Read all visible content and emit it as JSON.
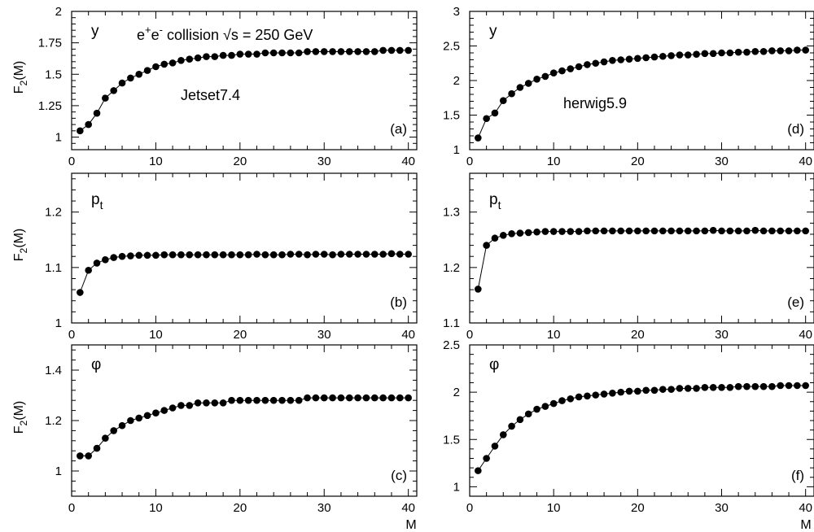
{
  "figure": {
    "annotation": "e⁺e⁻ collision  √s = 250 GeV",
    "generators": [
      "Jetset7.4",
      "herwig5.9"
    ]
  },
  "chart_data": [
    {
      "id": "a",
      "type": "scatter",
      "panel_label": "(a)",
      "variable": "y",
      "generator_label": "Jetset7.4",
      "ylabel": "F₂(M)",
      "xlabel": "",
      "xlim": [
        0,
        41
      ],
      "ylim": [
        0.9,
        2.0
      ],
      "xticks": [
        0,
        10,
        20,
        30,
        40
      ],
      "yticks": [
        "1",
        "1.25",
        "1.5",
        "1.75",
        "2"
      ],
      "x": [
        1,
        2,
        3,
        4,
        5,
        6,
        7,
        8,
        9,
        10,
        11,
        12,
        13,
        14,
        15,
        16,
        17,
        18,
        19,
        20,
        21,
        22,
        23,
        24,
        25,
        26,
        27,
        28,
        29,
        30,
        31,
        32,
        33,
        34,
        35,
        36,
        37,
        38,
        39,
        40
      ],
      "y": [
        1.05,
        1.1,
        1.19,
        1.31,
        1.37,
        1.43,
        1.47,
        1.5,
        1.53,
        1.56,
        1.58,
        1.59,
        1.61,
        1.62,
        1.63,
        1.64,
        1.64,
        1.65,
        1.65,
        1.66,
        1.66,
        1.66,
        1.67,
        1.67,
        1.67,
        1.67,
        1.67,
        1.68,
        1.68,
        1.68,
        1.68,
        1.68,
        1.68,
        1.68,
        1.68,
        1.68,
        1.69,
        1.69,
        1.69,
        1.69
      ],
      "fit_line": true
    },
    {
      "id": "b",
      "type": "scatter",
      "panel_label": "(b)",
      "variable": "pₜ",
      "ylabel": "F₂(M)",
      "xlabel": "",
      "xlim": [
        0,
        41
      ],
      "ylim": [
        1.0,
        1.27
      ],
      "xticks": [
        0,
        10,
        20,
        30,
        40
      ],
      "yticks": [
        "1",
        "1.1",
        "1.2"
      ],
      "x": [
        1,
        2,
        3,
        4,
        5,
        6,
        7,
        8,
        9,
        10,
        11,
        12,
        13,
        14,
        15,
        16,
        17,
        18,
        19,
        20,
        21,
        22,
        23,
        24,
        25,
        26,
        27,
        28,
        29,
        30,
        31,
        32,
        33,
        34,
        35,
        36,
        37,
        38,
        39,
        40
      ],
      "y": [
        1.055,
        1.095,
        1.108,
        1.114,
        1.118,
        1.12,
        1.121,
        1.122,
        1.122,
        1.122,
        1.123,
        1.123,
        1.123,
        1.123,
        1.123,
        1.123,
        1.123,
        1.123,
        1.123,
        1.123,
        1.123,
        1.124,
        1.123,
        1.123,
        1.123,
        1.124,
        1.124,
        1.123,
        1.124,
        1.124,
        1.123,
        1.124,
        1.124,
        1.124,
        1.124,
        1.124,
        1.124,
        1.125,
        1.124,
        1.124
      ],
      "fit_line": true
    },
    {
      "id": "c",
      "type": "scatter",
      "panel_label": "(c)",
      "variable": "φ",
      "ylabel": "F₂(M)",
      "xlabel": "",
      "xlim": [
        0,
        41
      ],
      "ylim": [
        0.9,
        1.5
      ],
      "xticks": [
        0,
        10,
        20,
        30,
        40
      ],
      "yticks": [
        "1",
        "1.2",
        "1.4"
      ],
      "x": [
        1,
        2,
        3,
        4,
        5,
        6,
        7,
        8,
        9,
        10,
        11,
        12,
        13,
        14,
        15,
        16,
        17,
        18,
        19,
        20,
        21,
        22,
        23,
        24,
        25,
        26,
        27,
        28,
        29,
        30,
        31,
        32,
        33,
        34,
        35,
        36,
        37,
        38,
        39,
        40
      ],
      "y": [
        1.06,
        1.06,
        1.09,
        1.13,
        1.16,
        1.18,
        1.2,
        1.21,
        1.22,
        1.23,
        1.24,
        1.25,
        1.26,
        1.26,
        1.27,
        1.27,
        1.27,
        1.27,
        1.28,
        1.28,
        1.28,
        1.28,
        1.28,
        1.28,
        1.28,
        1.28,
        1.28,
        1.29,
        1.29,
        1.29,
        1.29,
        1.29,
        1.29,
        1.29,
        1.29,
        1.29,
        1.29,
        1.29,
        1.29,
        1.29
      ],
      "fit_line": true
    },
    {
      "id": "d",
      "type": "scatter",
      "panel_label": "(d)",
      "variable": "y",
      "generator_label": "herwig5.9",
      "ylabel": "",
      "xlabel": "",
      "xlim": [
        0,
        41
      ],
      "ylim": [
        1.0,
        3.0
      ],
      "xticks": [
        0,
        10,
        20,
        30,
        40
      ],
      "yticks": [
        "1",
        "1.5",
        "2",
        "2.5",
        "3"
      ],
      "x": [
        1,
        2,
        3,
        4,
        5,
        6,
        7,
        8,
        9,
        10,
        11,
        12,
        13,
        14,
        15,
        16,
        17,
        18,
        19,
        20,
        21,
        22,
        23,
        24,
        25,
        26,
        27,
        28,
        29,
        30,
        31,
        32,
        33,
        34,
        35,
        36,
        37,
        38,
        39,
        40
      ],
      "y": [
        1.17,
        1.45,
        1.53,
        1.71,
        1.81,
        1.9,
        1.96,
        2.02,
        2.06,
        2.11,
        2.14,
        2.17,
        2.2,
        2.23,
        2.25,
        2.27,
        2.29,
        2.3,
        2.31,
        2.32,
        2.33,
        2.34,
        2.35,
        2.36,
        2.37,
        2.37,
        2.38,
        2.39,
        2.39,
        2.4,
        2.4,
        2.41,
        2.41,
        2.42,
        2.42,
        2.43,
        2.43,
        2.43,
        2.44,
        2.44
      ],
      "fit_line": true
    },
    {
      "id": "e",
      "type": "scatter",
      "panel_label": "(e)",
      "variable": "pₜ",
      "ylabel": "",
      "xlabel": "",
      "xlim": [
        0,
        41
      ],
      "ylim": [
        1.1,
        1.37
      ],
      "xticks": [
        0,
        10,
        20,
        30,
        40
      ],
      "yticks": [
        "1.1",
        "1.2",
        "1.3"
      ],
      "x": [
        1,
        2,
        3,
        4,
        5,
        6,
        7,
        8,
        9,
        10,
        11,
        12,
        13,
        14,
        15,
        16,
        17,
        18,
        19,
        20,
        21,
        22,
        23,
        24,
        25,
        26,
        27,
        28,
        29,
        30,
        31,
        32,
        33,
        34,
        35,
        36,
        37,
        38,
        39,
        40
      ],
      "y": [
        1.161,
        1.24,
        1.253,
        1.258,
        1.261,
        1.262,
        1.263,
        1.264,
        1.265,
        1.265,
        1.265,
        1.265,
        1.265,
        1.266,
        1.266,
        1.266,
        1.266,
        1.266,
        1.266,
        1.266,
        1.266,
        1.266,
        1.266,
        1.266,
        1.266,
        1.266,
        1.266,
        1.266,
        1.267,
        1.266,
        1.266,
        1.266,
        1.266,
        1.267,
        1.266,
        1.266,
        1.266,
        1.266,
        1.266,
        1.266
      ],
      "fit_line": true
    },
    {
      "id": "f",
      "type": "scatter",
      "panel_label": "(f)",
      "variable": "φ",
      "ylabel": "",
      "xlabel": "M",
      "xlim": [
        0,
        41
      ],
      "ylim": [
        0.9,
        2.5
      ],
      "xticks": [
        0,
        10,
        20,
        30,
        40
      ],
      "yticks": [
        "1",
        "1.5",
        "2",
        "2.5"
      ],
      "x": [
        1,
        2,
        3,
        4,
        5,
        6,
        7,
        8,
        9,
        10,
        11,
        12,
        13,
        14,
        15,
        16,
        17,
        18,
        19,
        20,
        21,
        22,
        23,
        24,
        25,
        26,
        27,
        28,
        29,
        30,
        31,
        32,
        33,
        34,
        35,
        36,
        37,
        38,
        39,
        40
      ],
      "y": [
        1.17,
        1.3,
        1.43,
        1.55,
        1.64,
        1.71,
        1.77,
        1.82,
        1.85,
        1.88,
        1.91,
        1.93,
        1.95,
        1.96,
        1.97,
        1.98,
        1.99,
        2.0,
        2.01,
        2.01,
        2.02,
        2.02,
        2.03,
        2.03,
        2.04,
        2.04,
        2.04,
        2.05,
        2.05,
        2.05,
        2.05,
        2.06,
        2.06,
        2.06,
        2.06,
        2.06,
        2.07,
        2.07,
        2.07,
        2.07
      ],
      "fit_line": true
    }
  ],
  "x_axis_title": "M"
}
